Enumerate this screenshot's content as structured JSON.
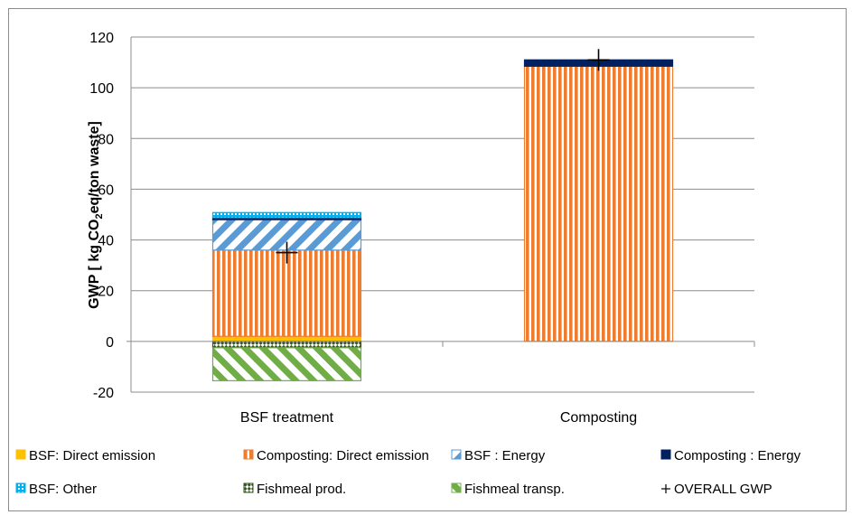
{
  "chart_data": {
    "type": "bar",
    "stacked": true,
    "categories": [
      "BSF treatment",
      "Composting"
    ],
    "ylabel_main": "GWP [ kg CO",
    "ylabel_sub": "2",
    "ylabel_tail": "eq/ton waste]",
    "ylim": [
      -20,
      120
    ],
    "yticks": [
      -20,
      0,
      20,
      40,
      60,
      80,
      100,
      120
    ],
    "grid": true,
    "legend_position": "bottom",
    "series": [
      {
        "name": "BSF: Direct emission",
        "color": "#ffc000",
        "pattern": "solid",
        "values": [
          2.0,
          0
        ]
      },
      {
        "name": "Composting: Direct emission",
        "color": "#ed7d31",
        "pattern": "vertical",
        "values": [
          34.0,
          108.5
        ]
      },
      {
        "name": "BSF : Energy",
        "color": "#5b9bd5",
        "pattern": "diagonal",
        "values": [
          12.0,
          0
        ]
      },
      {
        "name": "Composting : Energy",
        "color": "#002060",
        "pattern": "solid",
        "values": [
          0.8,
          2.5
        ]
      },
      {
        "name": "BSF: Other",
        "color": "#00b0f0",
        "pattern": "dotted",
        "values": [
          2.0,
          0
        ]
      },
      {
        "name": "Fishmeal prod.",
        "color": "#375623",
        "pattern": "checker",
        "values": [
          -2.5,
          0
        ]
      },
      {
        "name": "Fishmeal transp.",
        "color": "#70ad47",
        "pattern": "diagonal",
        "values": [
          -13.0,
          0
        ]
      }
    ],
    "overall_gwp": {
      "name": "OVERALL GWP",
      "values": [
        35,
        111
      ]
    }
  }
}
